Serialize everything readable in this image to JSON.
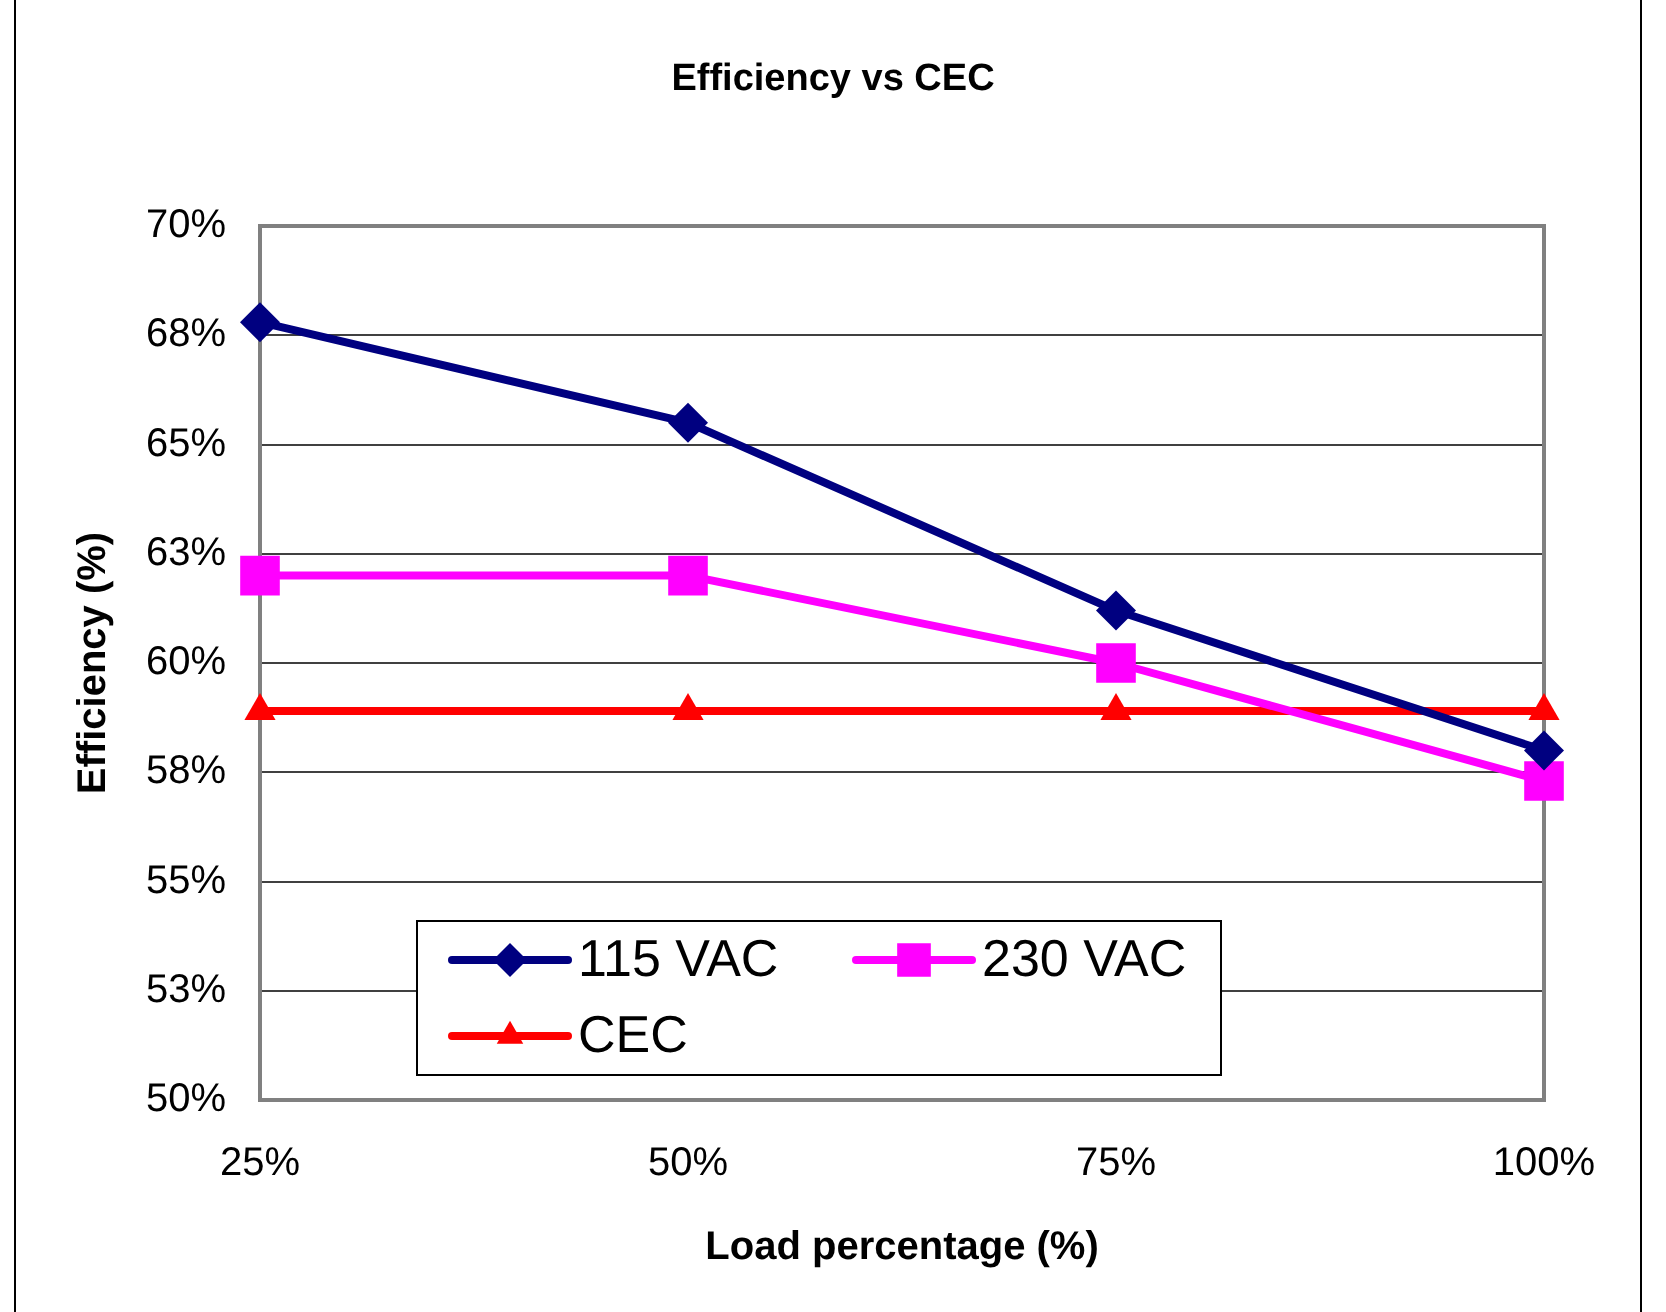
{
  "chart_data": {
    "type": "line",
    "title": "Efficiency vs CEC",
    "xlabel": "Load percentage (%)",
    "ylabel": "Efficiency (%)",
    "categories": [
      "25%",
      "50%",
      "75%",
      "100%"
    ],
    "series": [
      {
        "name": "115 VAC",
        "color": "#000080",
        "marker": "diamond",
        "values": [
          67.8,
          65.5,
          61.2,
          58.0
        ]
      },
      {
        "name": "230 VAC",
        "color": "#ff00ff",
        "marker": "square",
        "values": [
          62.0,
          62.0,
          60.0,
          57.3
        ]
      },
      {
        "name": "CEC",
        "color": "#ff0000",
        "marker": "triangle",
        "values": [
          58.9,
          58.9,
          58.9,
          58.9
        ]
      }
    ],
    "ylim": [
      50,
      70
    ],
    "yticks": [
      {
        "value": 50,
        "label": "50%"
      },
      {
        "value": 52.5,
        "label": "53%"
      },
      {
        "value": 55,
        "label": "55%"
      },
      {
        "value": 57.5,
        "label": "58%"
      },
      {
        "value": 60,
        "label": "60%"
      },
      {
        "value": 62.5,
        "label": "63%"
      },
      {
        "value": 65,
        "label": "65%"
      },
      {
        "value": 67.5,
        "label": "68%"
      },
      {
        "value": 70,
        "label": "70%"
      }
    ],
    "grid": "y",
    "legend": "bottom left"
  }
}
